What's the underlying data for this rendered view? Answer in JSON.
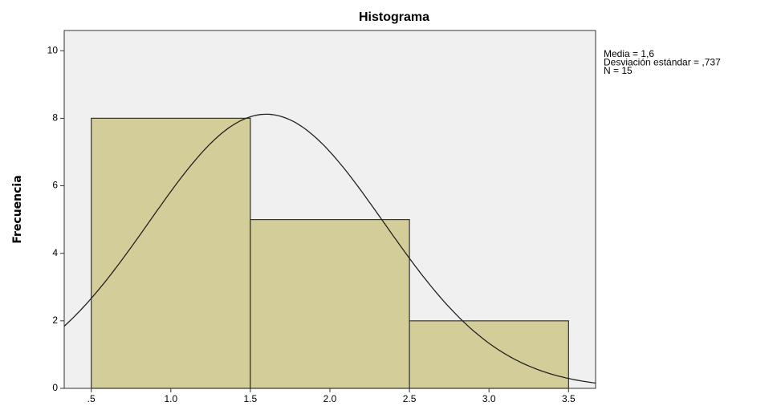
{
  "chart_data": {
    "type": "histogram",
    "title": "Histograma",
    "ylabel": "Frecuencia",
    "bins": [
      0.5,
      1.5,
      2.5,
      3.5
    ],
    "values": [
      8,
      5,
      2
    ],
    "color": "#d3ce99",
    "edge_color": "#333333",
    "background": "#f0f0f0",
    "xlim": [
      0.33,
      3.67
    ],
    "ylim": [
      0,
      10.6
    ],
    "xticks": [
      {
        "value": 0.5,
        "label": ".5"
      },
      {
        "value": 1.0,
        "label": "1.0"
      },
      1.5,
      {
        "value": 2.0,
        "label": "2.0"
      },
      2.5,
      {
        "value": 3.0,
        "label": "3.0"
      },
      3.5
    ],
    "yticks": [
      0,
      2,
      4,
      6,
      8,
      10
    ],
    "normal_curve": {
      "mean": 1.6,
      "sd": 0.737,
      "n": 15
    },
    "stats": [
      "Media = 1,6",
      "Desviación estándar = ,737",
      "N = 15"
    ]
  }
}
